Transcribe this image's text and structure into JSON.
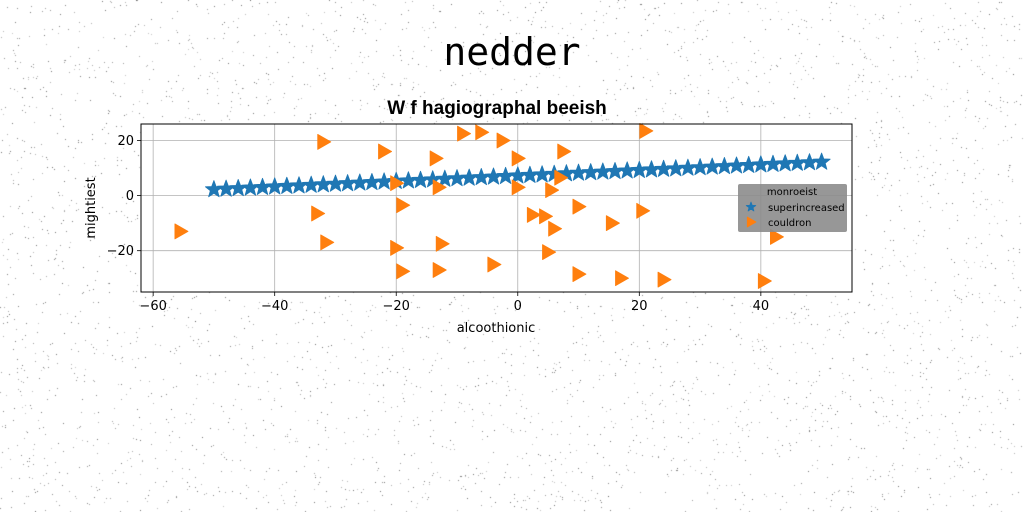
{
  "figure": {
    "suptitle": "nedder"
  },
  "chart_data": {
    "type": "scatter",
    "title": "W f hagiographal beeish",
    "xlabel": "alcoothionic",
    "ylabel": "mightiest",
    "xlim": [
      -62,
      55
    ],
    "ylim": [
      -35,
      26
    ],
    "xticks": [
      -60,
      -40,
      -20,
      0,
      20,
      40
    ],
    "yticks": [
      -20,
      0,
      20
    ],
    "grid": true,
    "legend": {
      "placement": "right",
      "title": "monroeist"
    },
    "series": [
      {
        "name": "superincreased",
        "marker": "star",
        "color": "#1f77b4",
        "x": [
          -50,
          -48,
          -46,
          -44,
          -42,
          -40,
          -38,
          -36,
          -34,
          -32,
          -30,
          -28,
          -26,
          -24,
          -22,
          -20,
          -18,
          -16,
          -14,
          -12,
          -10,
          -8,
          -6,
          -4,
          -2,
          0,
          2,
          4,
          6,
          8,
          10,
          12,
          14,
          16,
          18,
          20,
          22,
          24,
          26,
          28,
          30,
          32,
          34,
          36,
          38,
          40,
          42,
          44,
          46,
          48,
          50
        ],
        "y": [
          2.2,
          2.4,
          2.6,
          2.8,
          3.0,
          3.2,
          3.4,
          3.6,
          3.8,
          4.0,
          4.2,
          4.4,
          4.6,
          4.8,
          5.0,
          5.2,
          5.4,
          5.6,
          5.8,
          6.0,
          6.2,
          6.4,
          6.6,
          6.8,
          7.0,
          7.2,
          7.4,
          7.6,
          7.8,
          8.0,
          8.2,
          8.4,
          8.6,
          8.8,
          9.0,
          9.2,
          9.4,
          9.6,
          9.8,
          10.0,
          10.2,
          10.4,
          10.6,
          10.8,
          11.0,
          11.2,
          11.4,
          11.6,
          11.8,
          12.0,
          12.2
        ]
      },
      {
        "name": "couldron",
        "marker": "triangle-right",
        "color": "#ff7f0e",
        "x": [
          -55.5,
          -32,
          -33,
          -31.5,
          -22,
          -20,
          -19,
          -20,
          -19,
          -13.5,
          -13,
          -12.5,
          -13,
          -9,
          -6,
          -4,
          -2.5,
          0,
          0,
          2.5,
          4.5,
          5.5,
          5,
          6,
          7,
          7.5,
          10,
          10,
          15.5,
          17,
          20.5,
          21,
          24,
          40.5,
          42.5
        ],
        "y": [
          -13,
          19.5,
          -6.5,
          -17,
          16,
          4.5,
          -3.5,
          -19,
          -27.5,
          13.5,
          3,
          -17.5,
          -27,
          22.5,
          23,
          -25,
          20,
          13.5,
          3,
          -7,
          -7.5,
          2,
          -20.5,
          -12,
          6.5,
          16,
          -4,
          -28.5,
          -10,
          -30,
          -5.5,
          23.5,
          -30.5,
          -31,
          -15
        ]
      }
    ]
  }
}
